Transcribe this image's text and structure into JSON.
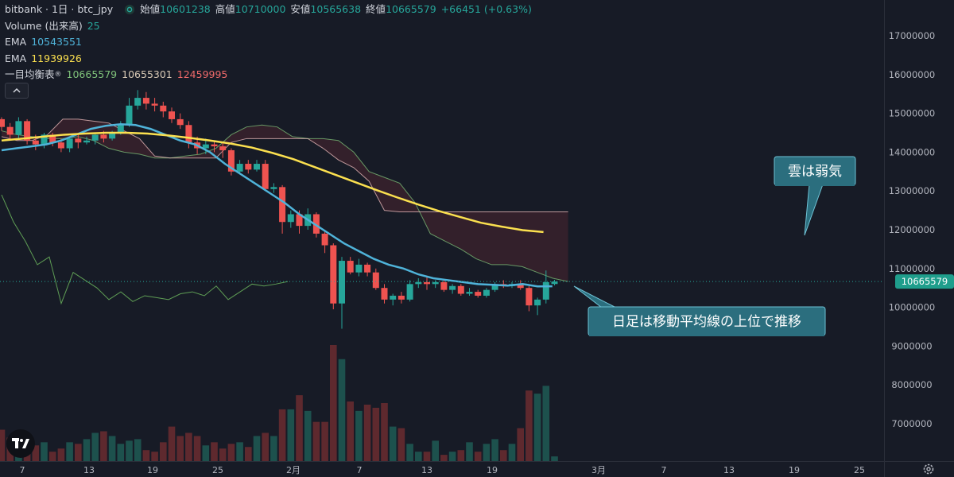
{
  "header": {
    "symbol": "bitbank · 1日 · btc_jpy",
    "ohlc_label_open": "始値",
    "open": "10601238",
    "ohlc_label_high": "高値",
    "high": "10710000",
    "ohlc_label_low": "安値",
    "low": "10565638",
    "ohlc_label_close": "終値",
    "close": "10665579",
    "change": "+66451 (+0.63%)"
  },
  "indicators": {
    "volume_label": "Volume (出来高)",
    "volume_value": "25",
    "ema1_label": "EMA",
    "ema1_value": "10543551",
    "ema2_label": "EMA",
    "ema2_value": "11939926",
    "ichimoku_label": "一目均衡表",
    "ichimoku_v1": "10665579",
    "ichimoku_v2": "10655301",
    "ichimoku_v3": "12459995"
  },
  "colors": {
    "bg": "#171b26",
    "up": "#26a69a",
    "down": "#ef5350",
    "ema_short": "#4fb3d9",
    "ema_long": "#fbe04f",
    "cloud_bear": "#f2c0c0",
    "chikou": "#5f9e55",
    "annotation_bg": "#2b6e7e",
    "annotation_border": "#6ec1d4"
  },
  "annotations": {
    "top": "雲は弱気",
    "bottom": "日足は移動平均線の上位で推移"
  },
  "chart_data": {
    "type": "candlestick",
    "title": "",
    "y_axis_ticks": [
      "17000000",
      "16000000",
      "15000000",
      "14000000",
      "13000000",
      "12000000",
      "11000000",
      "10000000",
      "9000000",
      "8000000",
      "7000000"
    ],
    "ylim": [
      6600000,
      17600000
    ],
    "x_axis_ticks": [
      "7",
      "13",
      "19",
      "25",
      "2月",
      "7",
      "13",
      "19",
      "3月",
      "7",
      "13",
      "19",
      "25"
    ],
    "last_price_label": "10665579",
    "last_price": 10665579,
    "candles": [
      [
        14850000,
        14650000,
        14900000,
        14550000
      ],
      [
        14650000,
        14450000,
        14750000,
        14300000
      ],
      [
        14450000,
        14800000,
        14900000,
        14350000
      ],
      [
        14800000,
        14300000,
        14850000,
        14200000
      ],
      [
        14300000,
        14200000,
        14450000,
        14050000
      ],
      [
        14200000,
        14450000,
        14500000,
        14100000
      ],
      [
        14450000,
        14250000,
        14500000,
        14150000
      ],
      [
        14250000,
        14100000,
        14350000,
        14000000
      ],
      [
        14100000,
        14350000,
        14400000,
        14000000
      ],
      [
        14350000,
        14250000,
        14450000,
        14100000
      ],
      [
        14250000,
        14300000,
        14400000,
        14200000
      ],
      [
        14300000,
        14450000,
        14500000,
        14200000
      ],
      [
        14450000,
        14350000,
        14550000,
        14250000
      ],
      [
        14350000,
        14500000,
        14550000,
        14300000
      ],
      [
        14500000,
        14700000,
        14800000,
        14450000
      ],
      [
        14700000,
        15200000,
        15400000,
        14650000
      ],
      [
        15200000,
        15400000,
        15600000,
        15100000
      ],
      [
        15400000,
        15250000,
        15550000,
        15100000
      ],
      [
        15250000,
        15200000,
        15400000,
        15050000
      ],
      [
        15200000,
        15050000,
        15300000,
        14900000
      ],
      [
        15050000,
        14850000,
        15150000,
        14750000
      ],
      [
        14850000,
        14700000,
        15000000,
        14600000
      ],
      [
        14700000,
        14250000,
        14800000,
        14100000
      ],
      [
        14250000,
        14100000,
        14400000,
        13950000
      ],
      [
        14100000,
        14200000,
        14350000,
        13950000
      ],
      [
        14200000,
        14150000,
        14300000,
        14000000
      ],
      [
        14150000,
        14050000,
        14250000,
        13850000
      ],
      [
        14050000,
        13500000,
        14100000,
        13400000
      ],
      [
        13500000,
        13700000,
        13800000,
        13450000
      ],
      [
        13700000,
        13550000,
        13800000,
        13450000
      ],
      [
        13550000,
        13700000,
        13800000,
        13500000
      ],
      [
        13700000,
        13050000,
        13800000,
        13000000
      ],
      [
        13050000,
        13100000,
        13200000,
        12950000
      ],
      [
        13100000,
        12200000,
        13150000,
        11900000
      ],
      [
        12200000,
        12400000,
        12500000,
        12050000
      ],
      [
        12400000,
        12100000,
        12500000,
        11900000
      ],
      [
        12100000,
        12400000,
        12550000,
        12000000
      ],
      [
        12400000,
        11900000,
        12450000,
        11800000
      ],
      [
        11900000,
        11600000,
        11950000,
        11400000
      ],
      [
        11600000,
        10100000,
        11650000,
        9950000
      ],
      [
        10100000,
        11200000,
        11300000,
        9450000
      ],
      [
        11200000,
        10900000,
        11300000,
        10850000
      ],
      [
        10900000,
        11100000,
        11250000,
        10800000
      ],
      [
        11100000,
        10900000,
        11150000,
        10800000
      ],
      [
        10900000,
        10500000,
        11000000,
        10450000
      ],
      [
        10500000,
        10200000,
        10600000,
        10100000
      ],
      [
        10200000,
        10300000,
        10350000,
        10050000
      ],
      [
        10300000,
        10200000,
        10400000,
        10100000
      ],
      [
        10200000,
        10600000,
        10700000,
        10150000
      ],
      [
        10600000,
        10650000,
        10750000,
        10500000
      ],
      [
        10650000,
        10600000,
        10800000,
        10450000
      ],
      [
        10600000,
        10650000,
        10700000,
        10500000
      ],
      [
        10650000,
        10450000,
        10700000,
        10400000
      ],
      [
        10450000,
        10550000,
        10600000,
        10350000
      ],
      [
        10550000,
        10350000,
        10600000,
        10300000
      ],
      [
        10350000,
        10400000,
        10500000,
        10300000
      ],
      [
        10400000,
        10300000,
        10450000,
        10250000
      ],
      [
        10300000,
        10450000,
        10500000,
        10250000
      ],
      [
        10450000,
        10600000,
        10650000,
        10400000
      ],
      [
        10600000,
        10550000,
        10700000,
        10500000
      ],
      [
        10550000,
        10600000,
        10650000,
        10500000
      ],
      [
        10600000,
        10500000,
        10700000,
        10450000
      ],
      [
        10500000,
        10050000,
        10550000,
        9900000
      ],
      [
        10050000,
        10200000,
        10250000,
        9800000
      ],
      [
        10200000,
        10650000,
        10950000,
        10100000
      ],
      [
        10601238,
        10665579,
        10710000,
        10565638
      ]
    ],
    "volumes": [
      2,
      1.5,
      1.5,
      1.2,
      1,
      1.2,
      0.6,
      0.8,
      1.2,
      1.1,
      1.4,
      1.8,
      1.9,
      1.6,
      1.1,
      1.3,
      1.4,
      0.7,
      0.6,
      1.2,
      2.2,
      1.6,
      1.8,
      1.6,
      1,
      1.2,
      0.8,
      1.1,
      1.2,
      0.9,
      1.6,
      1.8,
      1.6,
      3.3,
      3.3,
      4.2,
      3.2,
      2.5,
      2.5,
      7.4,
      6.5,
      3.8,
      3.2,
      3.6,
      3.4,
      3.7,
      2.2,
      2.1,
      1.1,
      0.6,
      0.6,
      1.3,
      0.4,
      0.6,
      0.7,
      1.2,
      0.6,
      1.1,
      1.4,
      0.7,
      1.1,
      2.1,
      4.5,
      4.3,
      4.8,
      0.3
    ],
    "ema_short": [
      14050000,
      14100000,
      14150000,
      14200000,
      14300000,
      14450000,
      14600000,
      14680000,
      14720000,
      14700000,
      14600000,
      14450000,
      14300000,
      14200000,
      14000000,
      13700000,
      13450000,
      13200000,
      12950000,
      12700000,
      12400000,
      12150000,
      11900000,
      11650000,
      11450000,
      11250000,
      11100000,
      11000000,
      10850000,
      10750000,
      10700000,
      10650000,
      10600000,
      10580000,
      10560000,
      10600000,
      10540000,
      10543551
    ],
    "ema_long": [
      14300000,
      14350000,
      14400000,
      14450000,
      14480000,
      14500000,
      14500000,
      14480000,
      14430000,
      14370000,
      14300000,
      14220000,
      14120000,
      13980000,
      13820000,
      13620000,
      13420000,
      13220000,
      13020000,
      12830000,
      12650000,
      12480000,
      12330000,
      12180000,
      12080000,
      11990000,
      11939926
    ],
    "cloud_span_a": [
      14550000,
      14450000,
      14400000,
      14350000,
      14350000,
      14400000,
      14300000,
      14100000,
      14000000,
      13950000,
      13850000,
      13850000,
      13900000,
      13950000,
      14100000,
      14450000,
      14650000,
      14700000,
      14650000,
      14400000,
      14350000,
      14350000,
      14300000,
      14000000,
      13500000,
      13350000,
      13200000,
      12700000,
      11900000,
      11700000,
      11500000,
      11250000,
      11100000,
      11100000,
      11050000,
      10900000,
      10750000,
      10665579
    ],
    "cloud_span_b": [
      14400000,
      14300000,
      14300000,
      14450000,
      14850000,
      14850000,
      14800000,
      14750000,
      14550000,
      14350000,
      13900000,
      13850000,
      13850000,
      13850000,
      13850000,
      14250000,
      14350000,
      14350000,
      14350000,
      14350000,
      14350000,
      14100000,
      13800000,
      13600000,
      13250000,
      12500000,
      12459995,
      12459995,
      12459995,
      12459995,
      12459995,
      12459995,
      12459995,
      12459995,
      12459995,
      12459995,
      12459995,
      12459995
    ]
  }
}
